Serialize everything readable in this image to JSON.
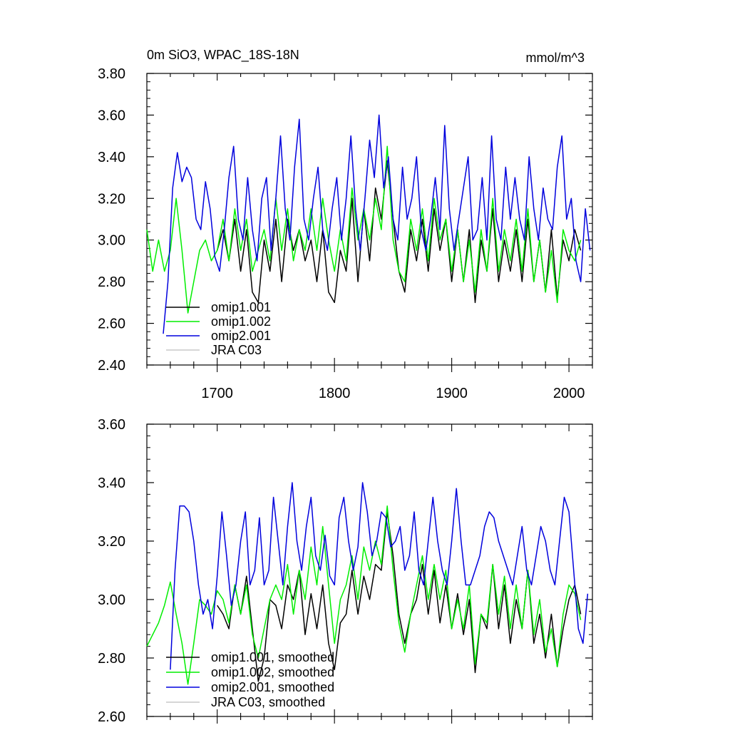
{
  "chart_data": [
    {
      "type": "line",
      "title_left": "0m SiO3, WPAC_18S-18N",
      "title_right": "mmol/m^3",
      "xlim": [
        1640,
        2020
      ],
      "ylim": [
        2.4,
        3.8
      ],
      "yticks": [
        "2.40",
        "2.60",
        "2.80",
        "3.00",
        "3.20",
        "3.40",
        "3.60",
        "3.80"
      ],
      "xticks": [
        "1700",
        "1800",
        "1900",
        "2000"
      ],
      "series": [
        {
          "name": "omip1.001",
          "color": "#000000",
          "x": [
            1700,
            1705,
            1710,
            1715,
            1720,
            1725,
            1730,
            1735,
            1740,
            1745,
            1750,
            1755,
            1760,
            1765,
            1770,
            1775,
            1780,
            1785,
            1790,
            1795,
            1800,
            1805,
            1810,
            1815,
            1820,
            1825,
            1830,
            1835,
            1840,
            1845,
            1850,
            1855,
            1860,
            1865,
            1870,
            1875,
            1880,
            1885,
            1890,
            1895,
            1900,
            1905,
            1910,
            1915,
            1920,
            1925,
            1930,
            1935,
            1940,
            1945,
            1950,
            1955,
            1960,
            1965,
            1970,
            1975,
            1980,
            1985,
            1990,
            1995,
            2000,
            2005,
            2010
          ],
          "y": [
            2.95,
            3.05,
            2.9,
            3.1,
            2.85,
            3.05,
            2.75,
            2.7,
            3.0,
            2.85,
            3.1,
            2.8,
            3.1,
            2.95,
            3.05,
            2.9,
            3.0,
            2.8,
            3.05,
            2.75,
            2.7,
            2.95,
            2.85,
            3.2,
            2.8,
            3.15,
            2.9,
            3.25,
            3.1,
            3.38,
            3.1,
            2.85,
            2.75,
            3.05,
            2.9,
            3.1,
            2.85,
            3.15,
            2.95,
            3.1,
            2.8,
            3.05,
            2.8,
            3.05,
            2.7,
            3.0,
            2.85,
            3.15,
            2.8,
            3.0,
            2.85,
            3.05,
            2.8,
            3.1,
            2.8,
            3.0,
            2.75,
            3.05,
            2.72,
            3.0,
            2.9,
            3.05,
            2.95
          ]
        },
        {
          "name": "omip1.002",
          "color": "#00ee00",
          "x": [
            1640,
            1645,
            1650,
            1655,
            1660,
            1665,
            1670,
            1675,
            1680,
            1685,
            1690,
            1695,
            1700,
            1705,
            1710,
            1715,
            1720,
            1725,
            1730,
            1735,
            1740,
            1745,
            1750,
            1755,
            1760,
            1765,
            1770,
            1775,
            1780,
            1785,
            1790,
            1795,
            1800,
            1805,
            1810,
            1815,
            1820,
            1825,
            1830,
            1835,
            1840,
            1845,
            1850,
            1855,
            1860,
            1865,
            1870,
            1875,
            1880,
            1885,
            1890,
            1895,
            1900,
            1905,
            1910,
            1915,
            1920,
            1925,
            1930,
            1935,
            1940,
            1945,
            1950,
            1955,
            1960,
            1965,
            1970,
            1975,
            1980,
            1985,
            1990,
            1995,
            2000,
            2005,
            2010
          ],
          "y": [
            3.05,
            2.85,
            3.0,
            2.85,
            2.95,
            3.2,
            2.95,
            2.65,
            2.8,
            2.95,
            3.0,
            2.9,
            2.95,
            3.1,
            2.9,
            3.15,
            2.95,
            3.1,
            2.85,
            2.95,
            3.05,
            2.9,
            3.2,
            2.95,
            3.15,
            2.9,
            3.05,
            2.95,
            3.15,
            2.95,
            3.2,
            3.0,
            2.85,
            3.05,
            2.9,
            3.25,
            3.0,
            3.15,
            3.0,
            3.2,
            3.05,
            3.45,
            3.0,
            2.85,
            2.8,
            3.1,
            2.95,
            3.15,
            2.9,
            3.2,
            3.0,
            3.1,
            2.85,
            3.05,
            2.8,
            3.0,
            2.75,
            3.05,
            2.85,
            3.2,
            2.85,
            3.05,
            2.9,
            3.1,
            2.85,
            3.15,
            2.8,
            3.0,
            2.75,
            2.95,
            2.7,
            3.05,
            2.95,
            2.9,
            3.0
          ]
        },
        {
          "name": "omip2.001",
          "color": "#0000dd",
          "x": [
            1654,
            1658,
            1662,
            1666,
            1670,
            1674,
            1678,
            1682,
            1686,
            1690,
            1694,
            1698,
            1702,
            1706,
            1710,
            1714,
            1718,
            1722,
            1726,
            1730,
            1734,
            1738,
            1742,
            1746,
            1750,
            1754,
            1758,
            1762,
            1766,
            1770,
            1774,
            1778,
            1782,
            1786,
            1790,
            1794,
            1798,
            1802,
            1806,
            1810,
            1814,
            1818,
            1822,
            1826,
            1830,
            1834,
            1838,
            1842,
            1846,
            1850,
            1854,
            1858,
            1862,
            1866,
            1870,
            1874,
            1878,
            1882,
            1886,
            1890,
            1894,
            1898,
            1902,
            1906,
            1910,
            1914,
            1918,
            1922,
            1926,
            1930,
            1934,
            1938,
            1942,
            1946,
            1950,
            1954,
            1958,
            1962,
            1966,
            1970,
            1974,
            1978,
            1982,
            1986,
            1990,
            1994,
            1998,
            2002,
            2006,
            2010,
            2014,
            2018
          ],
          "y": [
            2.55,
            2.8,
            3.25,
            3.42,
            3.28,
            3.35,
            3.3,
            3.1,
            3.05,
            3.28,
            3.15,
            2.92,
            2.85,
            3.05,
            3.3,
            3.45,
            3.1,
            3.0,
            3.3,
            3.05,
            2.9,
            3.2,
            3.3,
            2.95,
            3.2,
            3.5,
            3.15,
            3.0,
            3.35,
            3.58,
            3.1,
            3.0,
            3.2,
            3.35,
            3.05,
            2.95,
            3.15,
            3.3,
            3.0,
            3.2,
            3.5,
            3.15,
            2.95,
            3.2,
            3.48,
            3.3,
            3.6,
            3.25,
            3.4,
            3.1,
            3.0,
            3.35,
            3.1,
            3.2,
            3.4,
            3.05,
            2.95,
            3.1,
            3.3,
            3.05,
            3.55,
            3.15,
            2.95,
            3.1,
            3.25,
            3.4,
            3.0,
            3.05,
            3.3,
            3.0,
            3.5,
            3.1,
            3.0,
            3.35,
            3.1,
            3.3,
            3.1,
            3.0,
            3.4,
            3.15,
            3.0,
            3.25,
            3.1,
            3.05,
            3.35,
            3.5,
            3.1,
            3.2,
            2.9,
            2.8,
            3.15,
            2.95
          ]
        },
        {
          "name": "JRA C03",
          "color": "#c8c8c8",
          "x": [],
          "y": []
        }
      ]
    },
    {
      "type": "line",
      "xlim": [
        1640,
        2020
      ],
      "ylim": [
        2.6,
        3.6
      ],
      "yticks": [
        "2.60",
        "2.80",
        "3.00",
        "3.20",
        "3.40",
        "3.60"
      ],
      "series": [
        {
          "name": "omip1.001, smoothed",
          "color": "#000000",
          "x": [
            1700,
            1705,
            1710,
            1715,
            1720,
            1725,
            1730,
            1735,
            1740,
            1745,
            1750,
            1755,
            1760,
            1765,
            1770,
            1775,
            1780,
            1785,
            1790,
            1795,
            1800,
            1805,
            1810,
            1815,
            1820,
            1825,
            1830,
            1835,
            1840,
            1845,
            1850,
            1855,
            1860,
            1865,
            1870,
            1875,
            1880,
            1885,
            1890,
            1895,
            1900,
            1905,
            1910,
            1915,
            1920,
            1925,
            1930,
            1935,
            1940,
            1945,
            1950,
            1955,
            1960,
            1965,
            1970,
            1975,
            1980,
            1985,
            1990,
            1995,
            2000,
            2005,
            2010
          ],
          "y": [
            2.98,
            2.95,
            2.9,
            3.05,
            2.95,
            3.08,
            2.9,
            2.72,
            2.8,
            3.0,
            2.98,
            2.9,
            3.05,
            3.0,
            3.1,
            2.88,
            3.02,
            2.9,
            3.05,
            2.85,
            2.76,
            2.92,
            2.95,
            3.1,
            2.95,
            3.08,
            3.0,
            3.12,
            3.1,
            3.3,
            3.15,
            2.95,
            2.85,
            2.95,
            3.0,
            3.12,
            2.95,
            3.1,
            2.92,
            3.05,
            2.9,
            3.02,
            2.88,
            3.0,
            2.75,
            2.95,
            2.9,
            3.12,
            2.9,
            3.05,
            2.85,
            3.0,
            2.9,
            3.1,
            2.85,
            2.95,
            2.8,
            2.95,
            2.77,
            2.9,
            3.0,
            3.05,
            2.95
          ]
        },
        {
          "name": "omip1.002, smoothed",
          "color": "#00ee00",
          "x": [
            1640,
            1645,
            1650,
            1655,
            1660,
            1665,
            1670,
            1675,
            1680,
            1685,
            1690,
            1695,
            1700,
            1705,
            1710,
            1715,
            1720,
            1725,
            1730,
            1735,
            1740,
            1745,
            1750,
            1755,
            1760,
            1765,
            1770,
            1775,
            1780,
            1785,
            1790,
            1795,
            1800,
            1805,
            1810,
            1815,
            1820,
            1825,
            1830,
            1835,
            1840,
            1845,
            1850,
            1855,
            1860,
            1865,
            1870,
            1875,
            1880,
            1885,
            1890,
            1895,
            1900,
            1905,
            1910,
            1915,
            1920,
            1925,
            1930,
            1935,
            1940,
            1945,
            1950,
            1955,
            1960,
            1965,
            1970,
            1975,
            1980,
            1985,
            1990,
            1995,
            2000,
            2005,
            2010
          ],
          "y": [
            2.84,
            2.88,
            2.92,
            2.98,
            3.06,
            2.95,
            2.85,
            2.71,
            2.85,
            3.0,
            2.98,
            2.95,
            3.03,
            3.0,
            2.92,
            3.05,
            2.95,
            3.05,
            2.88,
            2.8,
            2.9,
            3.0,
            3.05,
            3.0,
            3.12,
            2.95,
            3.1,
            3.0,
            3.18,
            3.05,
            3.25,
            3.05,
            2.85,
            3.0,
            3.05,
            3.15,
            3.0,
            3.18,
            3.1,
            3.2,
            3.12,
            3.32,
            3.1,
            2.92,
            2.82,
            2.95,
            3.05,
            3.15,
            3.0,
            3.12,
            3.0,
            3.1,
            2.9,
            3.0,
            2.9,
            3.05,
            2.78,
            2.95,
            2.92,
            3.12,
            2.95,
            3.08,
            2.9,
            3.05,
            2.9,
            3.1,
            2.88,
            3.0,
            2.82,
            2.9,
            2.77,
            2.95,
            3.05,
            3.02,
            2.93
          ]
        },
        {
          "name": "omip2.001, smoothed",
          "color": "#0000dd",
          "x": [
            1660,
            1664,
            1668,
            1672,
            1676,
            1680,
            1684,
            1688,
            1692,
            1696,
            1700,
            1704,
            1708,
            1712,
            1716,
            1720,
            1724,
            1728,
            1732,
            1736,
            1740,
            1744,
            1748,
            1752,
            1756,
            1760,
            1764,
            1768,
            1772,
            1776,
            1780,
            1784,
            1788,
            1792,
            1796,
            1800,
            1804,
            1808,
            1812,
            1816,
            1820,
            1824,
            1828,
            1832,
            1836,
            1840,
            1844,
            1848,
            1852,
            1856,
            1860,
            1864,
            1868,
            1872,
            1876,
            1880,
            1884,
            1888,
            1892,
            1896,
            1900,
            1904,
            1908,
            1912,
            1916,
            1920,
            1924,
            1928,
            1932,
            1936,
            1940,
            1944,
            1948,
            1952,
            1956,
            1960,
            1964,
            1968,
            1972,
            1976,
            1980,
            1984,
            1988,
            1992,
            1996,
            2000,
            2004,
            2008,
            2012,
            2016
          ],
          "y": [
            2.76,
            3.1,
            3.32,
            3.32,
            3.3,
            3.2,
            3.05,
            2.95,
            3.0,
            2.9,
            3.08,
            3.3,
            3.15,
            2.98,
            3.05,
            3.2,
            3.3,
            3.05,
            3.1,
            3.28,
            3.05,
            3.1,
            3.35,
            3.2,
            3.05,
            3.25,
            3.4,
            3.2,
            3.1,
            3.25,
            3.35,
            3.15,
            3.1,
            3.22,
            3.08,
            3.05,
            3.28,
            3.35,
            3.2,
            3.1,
            3.18,
            3.4,
            3.3,
            3.15,
            3.2,
            3.3,
            3.28,
            3.18,
            3.2,
            3.25,
            3.1,
            3.15,
            3.3,
            3.1,
            3.05,
            3.2,
            3.35,
            3.2,
            3.1,
            3.05,
            3.2,
            3.38,
            3.2,
            3.05,
            3.05,
            3.1,
            3.15,
            3.25,
            3.3,
            3.28,
            3.2,
            3.15,
            3.1,
            3.05,
            3.15,
            3.25,
            3.1,
            3.05,
            3.15,
            3.25,
            3.2,
            3.1,
            3.05,
            3.2,
            3.35,
            3.3,
            3.1,
            2.9,
            2.85,
            3.02
          ]
        },
        {
          "name": "JRA C03, smoothed",
          "color": "#c8c8c8",
          "x": [],
          "y": []
        }
      ]
    }
  ]
}
